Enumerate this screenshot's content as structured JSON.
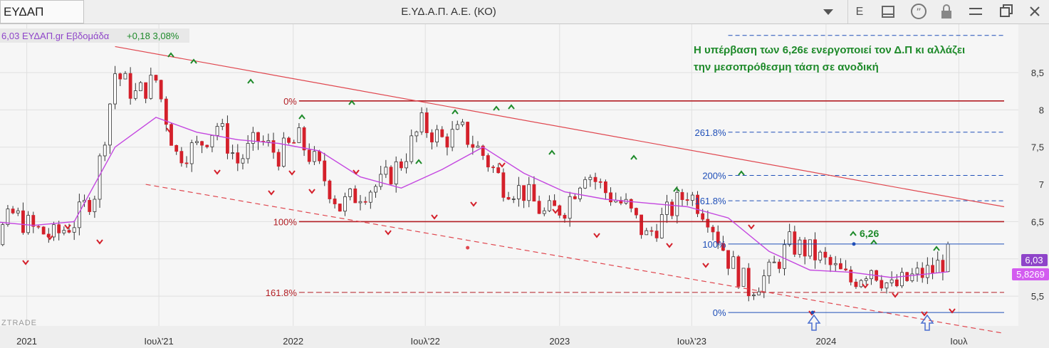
{
  "toolbar": {
    "symbol": "ΕΥΔΑΠ",
    "title": "Ε.ΥΔ.Α.Π. Α.Ε. (ΚΟ)",
    "mode_label": "E"
  },
  "legend": {
    "price": "6,03",
    "name": "ΕΥΔΑΠ.gr Εβδομάδα",
    "change": "+0,18 3,08%"
  },
  "annotation": "Η υπέρβαση των 6,26ε ενεργοποιεί τον Δ.Π κι αλλάζει\nτην μεσοπρόθεσμη τάση σε ανοδική",
  "watermark": "ZTRADE",
  "price_tags": {
    "last": "6,03",
    "ma": "5,8269",
    "last_color": "#8e44c9",
    "ma_color": "#d35cf0"
  },
  "level_label_626": "6,26",
  "colors": {
    "up": "#ffffff",
    "down": "#d4202b",
    "ma": "#c447e0",
    "trend": "#e0474f",
    "fib_red": "#b21e24",
    "fib_blue": "#1f4fb8",
    "note": "#1e8a2a"
  },
  "chart_data": {
    "type": "line",
    "x_ticks": [
      "2021",
      "Ιουλ'21",
      "2022",
      "Ιουλ'22",
      "2023",
      "Ιουλ'23",
      "2024",
      "Ιουλ"
    ],
    "y_ticks": [
      "5,5",
      "6",
      "6,5",
      "7",
      "7,5",
      "8",
      "8,5"
    ],
    "ylim": [
      5.1,
      9.15
    ],
    "xlim": [
      "2020-09-20",
      "2024-09-01"
    ],
    "grid": true,
    "series": [
      {
        "kind": "close",
        "x": [
          "2020-09-20",
          "2020-10-18",
          "2020-11-15",
          "2020-12-13",
          "2021-01-10",
          "2021-02-07",
          "2021-03-07",
          "2021-04-04",
          "2021-05-02",
          "2021-05-30",
          "2021-06-27",
          "2021-07-25",
          "2021-08-22",
          "2021-09-19",
          "2021-10-17",
          "2021-11-14",
          "2021-12-12",
          "2022-01-09",
          "2022-02-06",
          "2022-03-06",
          "2022-04-03",
          "2022-05-01",
          "2022-05-29",
          "2022-06-26",
          "2022-07-24",
          "2022-08-21",
          "2022-09-18",
          "2022-10-16",
          "2022-11-13",
          "2022-12-11",
          "2023-01-08",
          "2023-02-05",
          "2023-03-05",
          "2023-04-02",
          "2023-04-30",
          "2023-05-28",
          "2023-06-25",
          "2023-07-23",
          "2023-08-20",
          "2023-09-17",
          "2023-10-15",
          "2023-11-12",
          "2023-12-10",
          "2024-01-07",
          "2024-02-04",
          "2024-03-03",
          "2024-03-31",
          "2024-04-28",
          "2024-05-26",
          "2024-06-16"
        ],
        "y": [
          6.5,
          6.3,
          6.2,
          6.6,
          6.4,
          6.3,
          6.5,
          6.9,
          8.5,
          8.2,
          8.4,
          7.4,
          7.5,
          7.8,
          7.3,
          7.6,
          7.4,
          7.6,
          7.2,
          6.7,
          6.9,
          7.0,
          7.3,
          7.8,
          7.6,
          7.7,
          7.4,
          7.0,
          6.9,
          6.6,
          6.7,
          7.2,
          6.9,
          6.7,
          6.3,
          6.6,
          6.9,
          6.6,
          6.0,
          5.6,
          5.8,
          6.2,
          6.1,
          5.9,
          5.7,
          5.9,
          5.6,
          5.75,
          5.85,
          6.03
        ]
      },
      {
        "name": "ΕΥΔΑΠ.gr Εβδομάδα",
        "kind": "moving_average",
        "x": [
          "2020-09-20",
          "2020-11-15",
          "2021-01-10",
          "2021-03-07",
          "2021-05-02",
          "2021-06-27",
          "2021-08-22",
          "2021-10-17",
          "2021-12-12",
          "2022-02-06",
          "2022-04-03",
          "2022-05-29",
          "2022-07-24",
          "2022-09-18",
          "2022-11-13",
          "2023-01-08",
          "2023-03-05",
          "2023-04-30",
          "2023-06-25",
          "2023-08-20",
          "2023-10-15",
          "2023-12-10",
          "2024-02-04",
          "2024-03-31",
          "2024-06-16"
        ],
        "y": [
          6.6,
          6.5,
          6.45,
          6.5,
          7.5,
          7.9,
          7.7,
          7.6,
          7.55,
          7.45,
          7.1,
          6.95,
          7.2,
          7.5,
          7.15,
          6.9,
          6.8,
          6.75,
          6.7,
          6.55,
          6.1,
          5.85,
          5.82,
          5.75,
          5.8269
        ]
      }
    ],
    "trendlines": [
      {
        "kind": "resistance",
        "from": [
          "2021-05-02",
          8.85
        ],
        "to": [
          "2024-09-01",
          6.7
        ]
      },
      {
        "kind": "support",
        "from": [
          "2021-06-13",
          7.0
        ],
        "to": [
          "2024-09-01",
          5.0
        ],
        "dashed": true
      }
    ],
    "levels": [
      {
        "label": "0%",
        "value": 8.12,
        "from": "2022-01-09",
        "to": "2024-09-01",
        "color": "red"
      },
      {
        "label": "100%",
        "value": 6.5,
        "from": "2022-01-09",
        "to": "2024-09-01",
        "color": "red"
      },
      {
        "label": "161.8%",
        "value": 5.55,
        "from": "2022-01-09",
        "to": "2024-09-01",
        "color": "red",
        "dashed": true
      },
      {
        "label": "0%",
        "value": 5.28,
        "from": "2023-08-20",
        "to": "2024-09-01",
        "color": "blue"
      },
      {
        "label": "100%",
        "value": 6.2,
        "from": "2023-08-20",
        "to": "2024-09-01",
        "color": "blue"
      },
      {
        "label": "161.8%",
        "value": 6.78,
        "from": "2023-08-20",
        "to": "2024-09-01",
        "color": "blue",
        "dashed": true
      },
      {
        "label": "200%",
        "value": 7.12,
        "from": "2023-08-20",
        "to": "2024-09-01",
        "color": "blue",
        "dashed": true
      },
      {
        "label": "261.8%",
        "value": 7.7,
        "from": "2023-08-20",
        "to": "2024-09-01",
        "color": "blue",
        "dashed": true
      },
      {
        "label": "",
        "value": 9.0,
        "from": "2023-08-20",
        "to": "2024-09-01",
        "color": "blue",
        "dashed": true
      }
    ]
  }
}
